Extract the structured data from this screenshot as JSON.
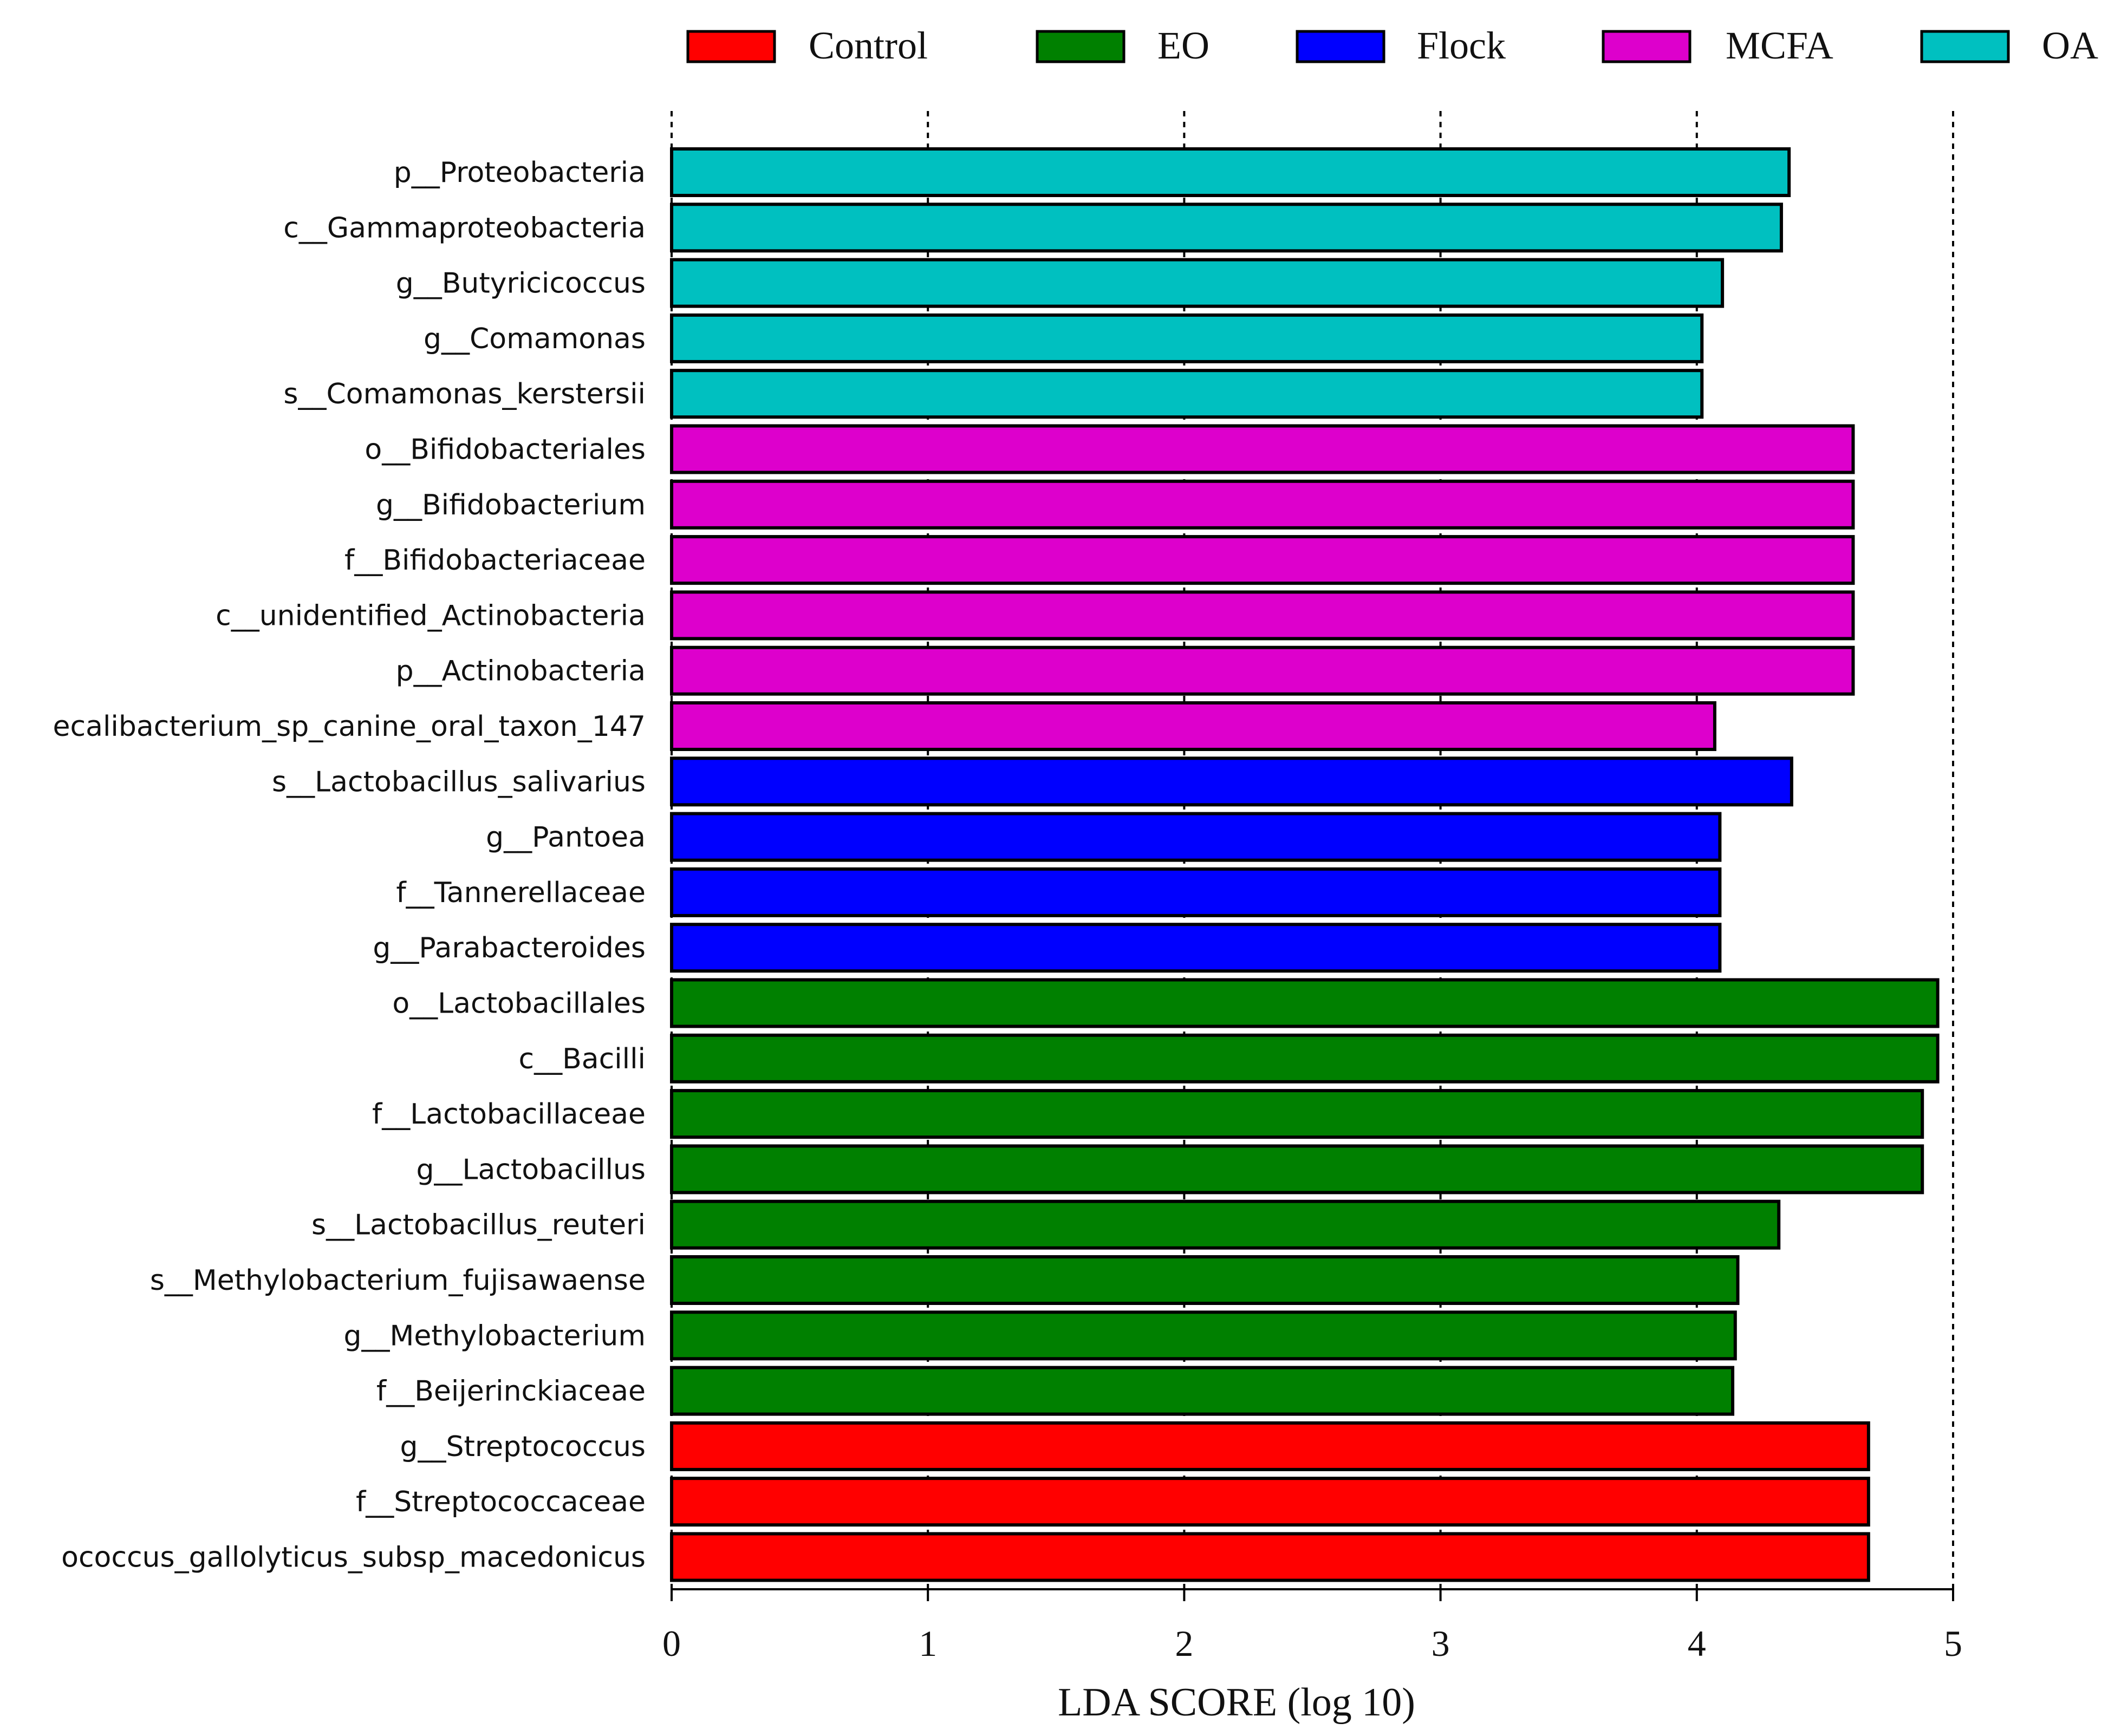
{
  "chart_data": {
    "type": "bar",
    "orientation": "horizontal",
    "title": "",
    "xlabel": "LDA SCORE (log 10)",
    "ylabel": "",
    "xlim": [
      0,
      5
    ],
    "x_ticks": [
      "0",
      "1",
      "2",
      "3",
      "4",
      "5"
    ],
    "grid": "vertical dashed",
    "legend_position": "top",
    "legend": [
      {
        "name": "Control",
        "color": "#ff0000"
      },
      {
        "name": "EO",
        "color": "#008000"
      },
      {
        "name": "Flock",
        "color": "#0000ff"
      },
      {
        "name": "MCFA",
        "color": "#dd00cc"
      },
      {
        "name": "OA",
        "color": "#00c0c0"
      }
    ],
    "bars": [
      {
        "label": "p__Proteobacteria",
        "value": 4.36,
        "group": "OA"
      },
      {
        "label": "c__Gammaproteobacteria",
        "value": 4.33,
        "group": "OA"
      },
      {
        "label": "g__Butyricicoccus",
        "value": 4.1,
        "group": "OA"
      },
      {
        "label": "g__Comamonas",
        "value": 4.02,
        "group": "OA"
      },
      {
        "label": "s__Comamonas_kerstersii",
        "value": 4.02,
        "group": "OA"
      },
      {
        "label": "o__Bifidobacteriales",
        "value": 4.61,
        "group": "MCFA"
      },
      {
        "label": "g__Bifidobacterium",
        "value": 4.61,
        "group": "MCFA"
      },
      {
        "label": "f__Bifidobacteriaceae",
        "value": 4.61,
        "group": "MCFA"
      },
      {
        "label": "c__unidentified_Actinobacteria",
        "value": 4.61,
        "group": "MCFA"
      },
      {
        "label": "p__Actinobacteria",
        "value": 4.61,
        "group": "MCFA"
      },
      {
        "label": "ecalibacterium_sp_canine_oral_taxon_147",
        "value": 4.07,
        "group": "MCFA"
      },
      {
        "label": "s__Lactobacillus_salivarius",
        "value": 4.37,
        "group": "Flock"
      },
      {
        "label": "g__Pantoea",
        "value": 4.09,
        "group": "Flock"
      },
      {
        "label": "f__Tannerellaceae",
        "value": 4.09,
        "group": "Flock"
      },
      {
        "label": "g__Parabacteroides",
        "value": 4.09,
        "group": "Flock"
      },
      {
        "label": "o__Lactobacillales",
        "value": 4.94,
        "group": "EO"
      },
      {
        "label": "c__Bacilli",
        "value": 4.94,
        "group": "EO"
      },
      {
        "label": "f__Lactobacillaceae",
        "value": 4.88,
        "group": "EO"
      },
      {
        "label": "g__Lactobacillus",
        "value": 4.88,
        "group": "EO"
      },
      {
        "label": "s__Lactobacillus_reuteri",
        "value": 4.32,
        "group": "EO"
      },
      {
        "label": "s__Methylobacterium_fujisawaense",
        "value": 4.16,
        "group": "EO"
      },
      {
        "label": "g__Methylobacterium",
        "value": 4.15,
        "group": "EO"
      },
      {
        "label": "f__Beijerinckiaceae",
        "value": 4.14,
        "group": "EO"
      },
      {
        "label": "g__Streptococcus",
        "value": 4.67,
        "group": "Control"
      },
      {
        "label": "f__Streptococcaceae",
        "value": 4.67,
        "group": "Control"
      },
      {
        "label": "ococcus_gallolyticus_subsp_macedonicus",
        "value": 4.67,
        "group": "Control"
      }
    ]
  }
}
